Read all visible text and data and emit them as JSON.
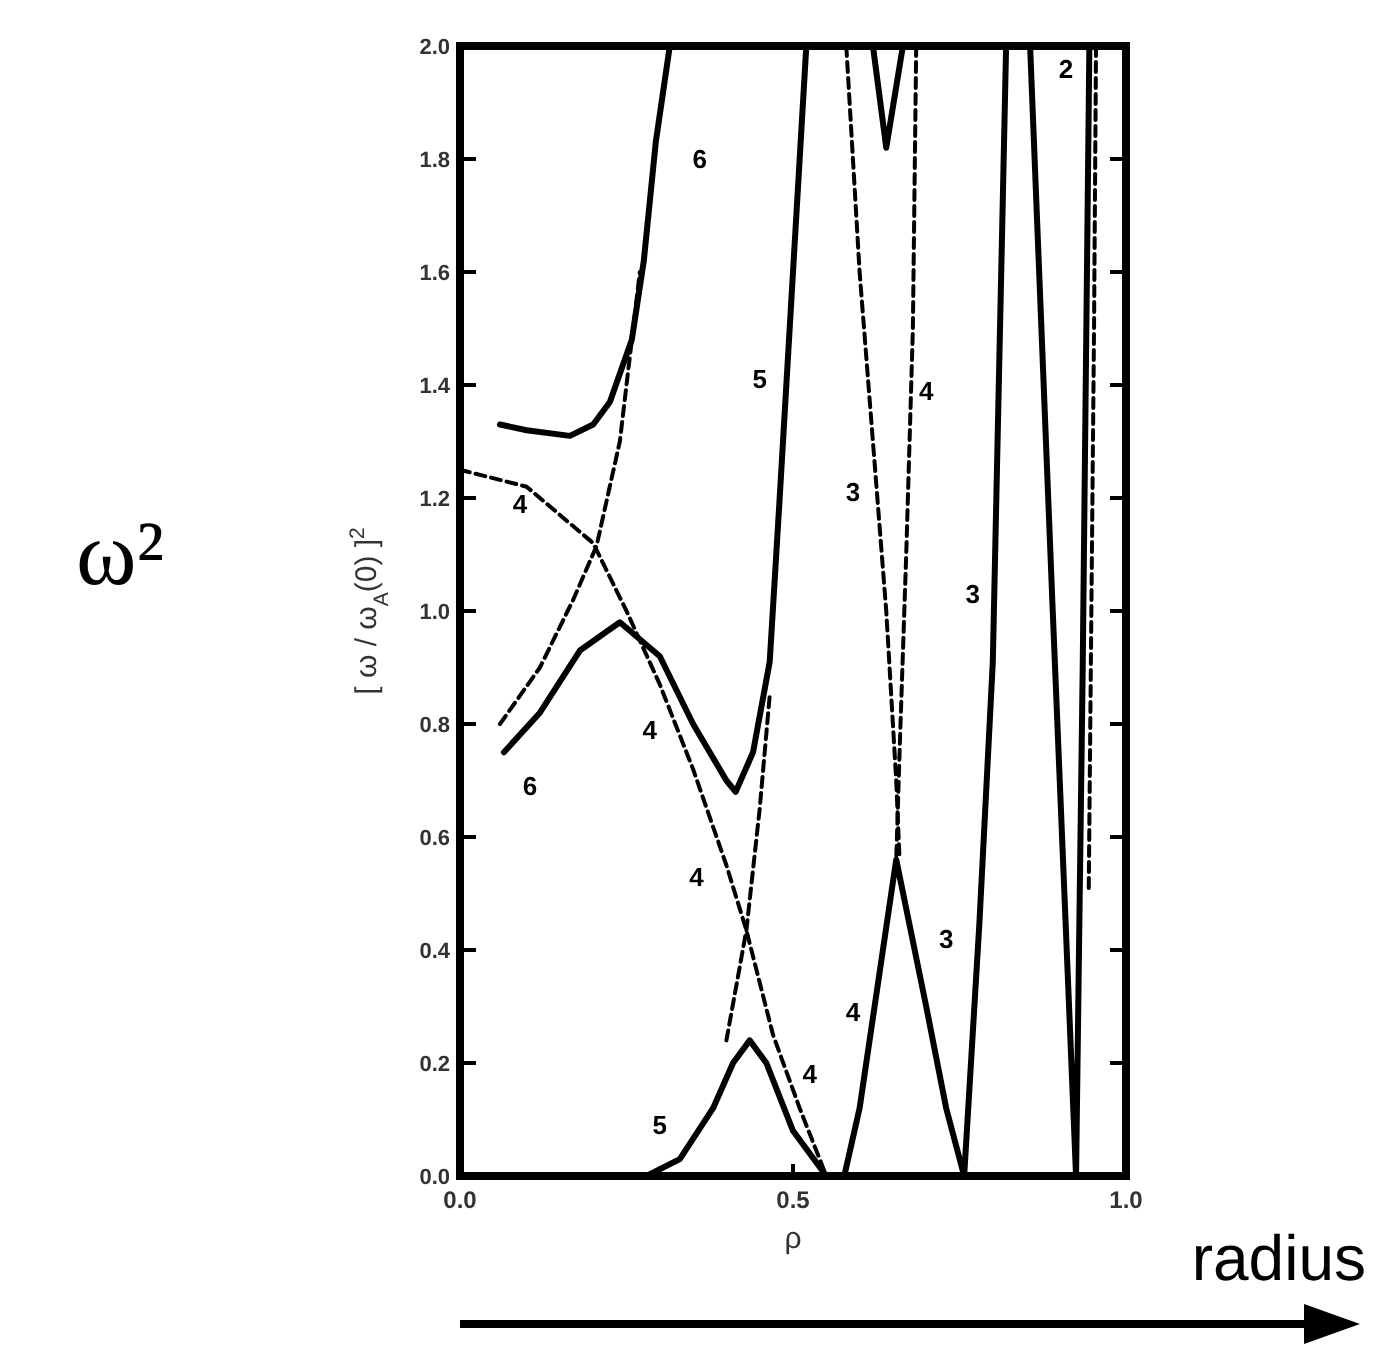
{
  "chart_data": {
    "type": "line",
    "xlabel": "ρ",
    "ylabel": "[ ω / ω$_{A}$(0) ]$^{2}$",
    "xlim": [
      0,
      1
    ],
    "ylim": [
      0,
      2
    ],
    "xticks": [
      {
        "value": 0,
        "label": "0.0"
      },
      {
        "value": 0.5,
        "label": "0.5"
      },
      {
        "value": 1,
        "label": "1.0"
      }
    ],
    "yticks": [
      {
        "value": 0,
        "label": "0.0"
      },
      {
        "value": 0.2,
        "label": "0.2"
      },
      {
        "value": 0.4,
        "label": "0.4"
      },
      {
        "value": 0.6,
        "label": "0.6"
      },
      {
        "value": 0.8,
        "label": "0.8"
      },
      {
        "value": 1,
        "label": "1.0"
      },
      {
        "value": 1.2,
        "label": "1.2"
      },
      {
        "value": 1.4,
        "label": "1.4"
      },
      {
        "value": 1.6,
        "label": "1.6"
      },
      {
        "value": 1.8,
        "label": "1.8"
      },
      {
        "value": 2,
        "label": "2.0"
      }
    ],
    "grid": false,
    "marker": "none",
    "series": [
      {
        "color": "#000000",
        "line_style": "solid",
        "x": [
          0.06,
          0.1,
          0.165,
          0.2,
          0.225,
          0.258,
          0.276,
          0.294,
          0.315
        ],
        "values": [
          1.33,
          1.32,
          1.31,
          1.33,
          1.37,
          1.48,
          1.62,
          1.83,
          2.0
        ]
      },
      {
        "color": "#000000",
        "line_style": "solid",
        "x": [
          0.066,
          0.12,
          0.18,
          0.24,
          0.3,
          0.35,
          0.4,
          0.414,
          0.44,
          0.465,
          0.48,
          0.495,
          0.51,
          0.52
        ],
        "values": [
          0.75,
          0.82,
          0.93,
          0.98,
          0.92,
          0.8,
          0.7,
          0.68,
          0.75,
          0.91,
          1.2,
          1.5,
          1.8,
          2.0
        ]
      },
      {
        "color": "#000000",
        "line_style": "solid",
        "x": [
          0.28,
          0.33,
          0.38,
          0.41,
          0.435,
          0.46,
          0.5,
          0.55,
          0.577,
          0.6,
          0.63,
          0.655,
          0.7,
          0.73,
          0.757,
          0.78,
          0.8,
          0.82
        ],
        "values": [
          0,
          0.03,
          0.12,
          0.2,
          0.24,
          0.2,
          0.08,
          0,
          0,
          0.12,
          0.36,
          0.56,
          0.3,
          0.12,
          0,
          0.45,
          0.91,
          2.0
        ]
      },
      {
        "color": "#000000",
        "line_style": "solid",
        "x": [
          0.856,
          0.89,
          0.925,
          0.935,
          0.945
        ],
        "values": [
          2.0,
          1.0,
          0,
          0.9,
          2.0
        ]
      },
      {
        "color": "#000000",
        "line_style": "solid",
        "x": [
          0.62,
          0.64,
          0.665
        ],
        "values": [
          2.0,
          1.82,
          2.0
        ]
      },
      {
        "color": "#000000",
        "line_style": "dashed",
        "x": [
          0,
          0.1,
          0.2,
          0.25,
          0.3,
          0.35,
          0.4,
          0.43,
          0.47,
          0.51,
          0.55
        ],
        "values": [
          1.25,
          1.22,
          1.12,
          1.0,
          0.87,
          0.72,
          0.55,
          0.435,
          0.25,
          0.12,
          0
        ]
      },
      {
        "color": "#000000",
        "line_style": "dashed",
        "x": [
          0.06,
          0.12,
          0.17,
          0.205,
          0.24,
          0.27
        ],
        "values": [
          0.8,
          0.9,
          1.02,
          1.115,
          1.3,
          1.6
        ]
      },
      {
        "color": "#000000",
        "line_style": "dashed",
        "x": [
          0.4,
          0.43,
          0.45,
          0.465
        ],
        "values": [
          0.24,
          0.435,
          0.65,
          0.85
        ]
      },
      {
        "color": "#000000",
        "line_style": "dashed",
        "x": [
          0.58,
          0.6,
          0.62,
          0.64,
          0.655,
          0.66
        ],
        "values": [
          2.0,
          1.6,
          1.3,
          1.0,
          0.7,
          0.56
        ]
      },
      {
        "color": "#000000",
        "line_style": "dashed",
        "x": [
          0.685,
          0.68,
          0.67,
          0.66,
          0.655
        ],
        "values": [
          2.0,
          1.5,
          1.1,
          0.75,
          0.56
        ]
      },
      {
        "color": "#000000",
        "line_style": "dashed",
        "x": [
          0.955,
          0.952,
          0.948,
          0.944
        ],
        "values": [
          2.0,
          1.5,
          1.0,
          0.5
        ]
      }
    ],
    "annotations": [
      "6",
      "5",
      "3",
      "4",
      "2",
      "3",
      "4",
      "6",
      "4",
      "4",
      "5",
      "4",
      "4",
      "3",
      "ω²",
      "radius"
    ]
  }
}
